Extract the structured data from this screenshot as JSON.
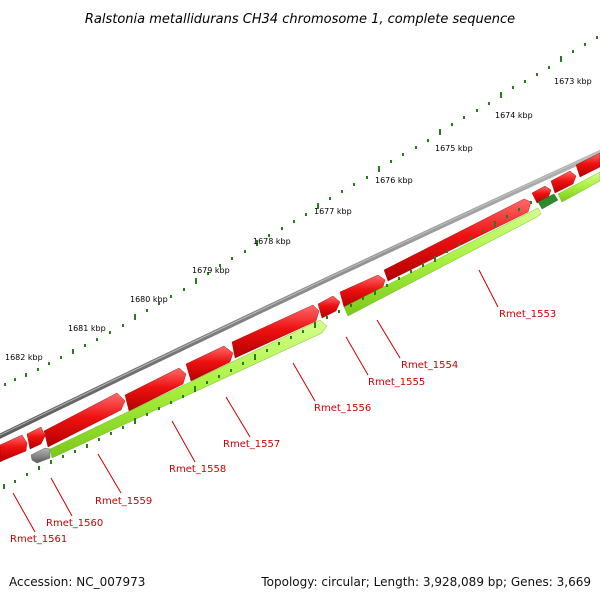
{
  "title": "Ralstonia metallidurans CH34 chromosome 1, complete sequence",
  "ticks": [
    "1673 kbp",
    "1674 kbp",
    "1675 kbp",
    "1676 kbp",
    "1677 kbp",
    "1678 kbp",
    "1679 kbp",
    "1680 kbp",
    "1681 kbp",
    "1682 kbp"
  ],
  "genes": [
    "Rmet_1553",
    "Rmet_1554",
    "Rmet_1555",
    "Rmet_1556",
    "Rmet_1557",
    "Rmet_1558",
    "Rmet_1559",
    "Rmet_1560",
    "Rmet_1561"
  ],
  "footer": {
    "accession": "Accession: NC_007973",
    "topology": "Topology: circular; Length: 3,928,089 bp; Genes: 3,669"
  },
  "colors": {
    "backbone": "#8a8a8a",
    "forward_gene": "#ee1111",
    "reverse_gene": "#a6f03c",
    "tick": "#2a7a1e",
    "label": "#cc0000"
  }
}
